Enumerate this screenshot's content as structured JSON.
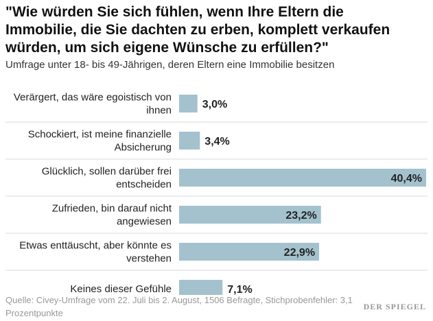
{
  "title": "\"Wie würden Sie sich fühlen, wenn Ihre Eltern die Immobilie, die Sie dachten zu erben, komplett verkaufen würden, um sich eigene Wünsche zu erfüllen?\"",
  "subtitle": "Umfrage unter 18- bis 49-Jährigen, deren Eltern eine Immobilie besitzen",
  "source": "Quelle: Civey-Umfrage vom 22. Juli bis 2. August, 1506 Befragte, Stichprobenfehler: 3,1 Prozentpunkte",
  "logo": "DER SPIEGEL",
  "colors": {
    "bar": "#a3c2ce",
    "divider": "#d8d8d8"
  },
  "chart_data": {
    "type": "bar",
    "orientation": "horizontal",
    "categories": [
      [
        "Verärgert, das wäre egoistisch von",
        "ihnen"
      ],
      [
        "Schockiert, ist meine finanzielle",
        "Absicherung"
      ],
      [
        "Glücklich, sollen darüber frei",
        "entscheiden"
      ],
      [
        "Zufrieden, bin darauf nicht",
        "angewiesen"
      ],
      [
        "Etwas enttäuscht, aber könnte es",
        "verstehen"
      ],
      [
        "Keines dieser Gefühle"
      ]
    ],
    "values": [
      3.0,
      3.4,
      40.4,
      23.2,
      22.9,
      7.1
    ],
    "value_labels": [
      "3,0%",
      "3,4%",
      "40,4%",
      "23,2%",
      "22,9%",
      "7,1%"
    ],
    "unit": "%",
    "xlim": [
      0,
      40.4
    ],
    "grid": false,
    "legend": "none"
  }
}
